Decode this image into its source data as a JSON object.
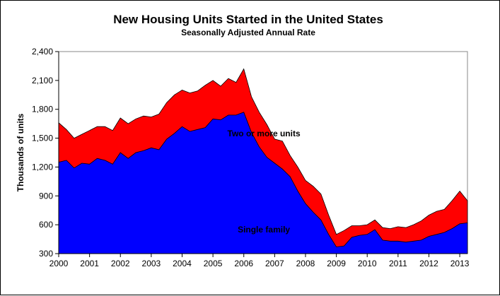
{
  "chart_data": {
    "type": "area",
    "title": "New Housing Units Started in the United States",
    "subtitle": "Seasonally Adjusted Annual Rate",
    "xlabel": "",
    "ylabel": "Thousands  of units",
    "ylim": [
      300,
      2400
    ],
    "xlim": [
      2000.0,
      2013.25
    ],
    "grid": false,
    "legend": "none",
    "y_ticks": [
      300,
      600,
      900,
      1200,
      1500,
      1800,
      2100,
      2400
    ],
    "y_tick_labels": [
      "300",
      "600",
      "900",
      "1,200",
      "1,500",
      "1,800",
      "2,100",
      "2,400"
    ],
    "x_ticks": [
      2000,
      2001,
      2002,
      2003,
      2004,
      2005,
      2006,
      2007,
      2008,
      2009,
      2010,
      2011,
      2012,
      2013
    ],
    "x_tick_labels": [
      "2000",
      "2001",
      "2002",
      "2003",
      "2004",
      "2005",
      "2006",
      "2007",
      "2008",
      "2009",
      "2010",
      "2011",
      "2012",
      "2013"
    ],
    "x": [
      2000.0,
      2000.25,
      2000.5,
      2000.75,
      2001.0,
      2001.25,
      2001.5,
      2001.75,
      2002.0,
      2002.25,
      2002.5,
      2002.75,
      2003.0,
      2003.25,
      2003.5,
      2003.75,
      2004.0,
      2004.25,
      2004.5,
      2004.75,
      2005.0,
      2005.25,
      2005.5,
      2005.75,
      2006.0,
      2006.25,
      2006.5,
      2006.75,
      2007.0,
      2007.25,
      2007.5,
      2007.75,
      2008.0,
      2008.25,
      2008.5,
      2008.75,
      2009.0,
      2009.25,
      2009.5,
      2009.75,
      2010.0,
      2010.25,
      2010.5,
      2010.75,
      2011.0,
      2011.25,
      2011.5,
      2011.75,
      2012.0,
      2012.25,
      2012.5,
      2012.75,
      2013.0,
      2013.25
    ],
    "series": [
      {
        "name": "Single family",
        "color": "#0000ff",
        "values": [
          1250,
          1270,
          1190,
          1240,
          1230,
          1290,
          1270,
          1230,
          1350,
          1290,
          1350,
          1370,
          1400,
          1380,
          1490,
          1550,
          1620,
          1570,
          1590,
          1610,
          1700,
          1690,
          1740,
          1740,
          1770,
          1560,
          1410,
          1300,
          1240,
          1180,
          1100,
          950,
          820,
          730,
          650,
          500,
          370,
          380,
          470,
          490,
          500,
          550,
          440,
          430,
          430,
          420,
          430,
          440,
          480,
          500,
          520,
          560,
          610,
          620
        ]
      },
      {
        "name": "Two or more units",
        "color": "#ff0000",
        "values": [
          1660,
          1590,
          1500,
          1540,
          1580,
          1620,
          1620,
          1580,
          1710,
          1650,
          1700,
          1730,
          1720,
          1750,
          1870,
          1950,
          2000,
          1970,
          1990,
          2050,
          2100,
          2040,
          2120,
          2080,
          2220,
          1930,
          1770,
          1640,
          1490,
          1470,
          1320,
          1200,
          1060,
          1000,
          920,
          700,
          500,
          540,
          590,
          590,
          600,
          650,
          570,
          560,
          580,
          570,
          600,
          640,
          700,
          740,
          760,
          850,
          950,
          850
        ]
      }
    ],
    "annotations": [
      {
        "text": "Two or more units",
        "x": 2006.65,
        "y": 1520
      },
      {
        "text": "Single family",
        "x": 2006.65,
        "y": 520
      }
    ]
  }
}
